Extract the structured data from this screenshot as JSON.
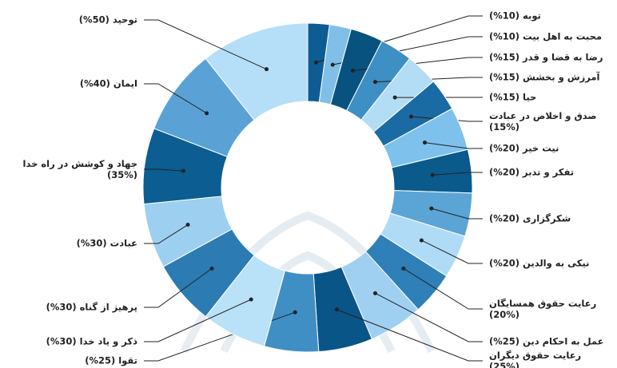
{
  "chart_data": {
    "type": "donut",
    "categories": [
      "توبه (10%)",
      "محبت به اهل بیت (10%)",
      "رضا به قضا و قدر (15%)",
      "آمرزش و بخشش (15%)",
      "حیا (15%)",
      "صدق و اخلاص در عبادت (15%)",
      "نیت خیر (20%)",
      "تفکر و تدبر (20%)",
      "شکرگزاری (20%)",
      "نیکی به والدین (20%)",
      "رعایت حقوق همسایگان (20%)",
      "عمل به احکام دین (25%)",
      "رعایت حقوق دیگران (25%)",
      "تقوا (25%)",
      "ذکر و یاد خدا (30%)",
      "پرهیز از گناه (30%)",
      "عبادت (30%)",
      "جهاد و کوشش در راه خدا (35%)",
      "ایمان (40%)",
      "توحید (50%)"
    ],
    "values": [
      10,
      10,
      15,
      15,
      15,
      15,
      20,
      20,
      20,
      20,
      20,
      25,
      25,
      25,
      30,
      30,
      30,
      35,
      40,
      50
    ],
    "colors": [
      "#0d5d94",
      "#7fbfe8",
      "#08527f",
      "#3d8fc4",
      "#b3dcf5",
      "#1a6aa3",
      "#7ec1ec",
      "#0a5a8c",
      "#5ba4d6",
      "#b0dbf6",
      "#2f7fb8",
      "#9fd0f2",
      "#0a5588",
      "#3f8fc5",
      "#b9e1f8",
      "#2c7bb3",
      "#9dcff0",
      "#0b5d92",
      "#5aa2d6",
      "#b5def8"
    ]
  }
}
